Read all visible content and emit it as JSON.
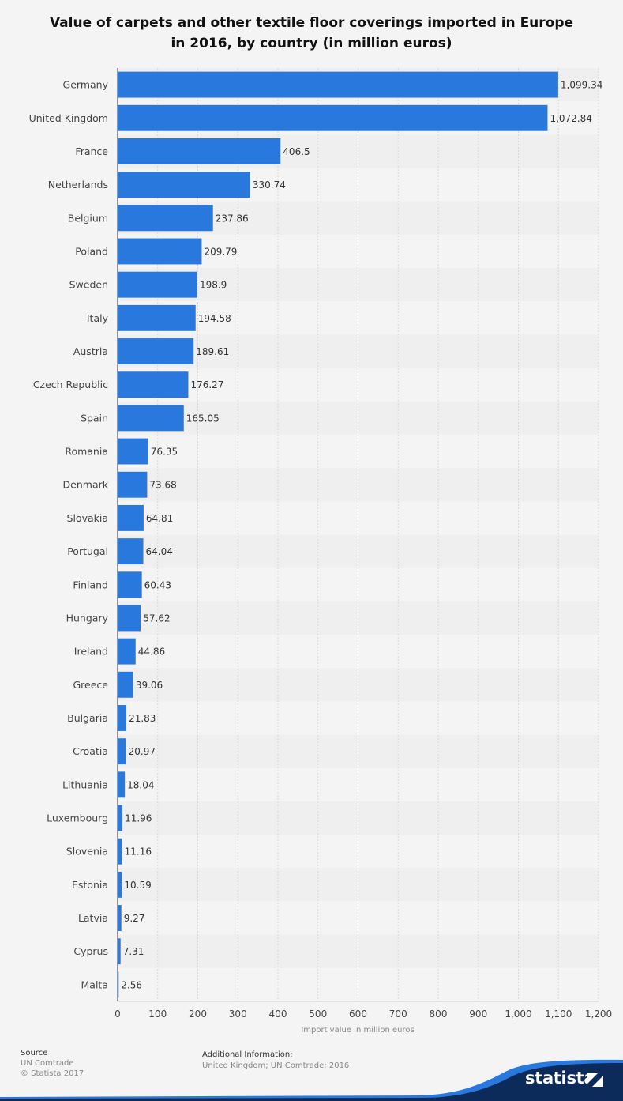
{
  "title_line1": "Value of carpets and other textile floor coverings imported in Europe",
  "title_line2": "in 2016, by country (in million euros)",
  "chart_data": {
    "type": "bar",
    "orientation": "horizontal",
    "categories": [
      "Germany",
      "United Kingdom",
      "France",
      "Netherlands",
      "Belgium",
      "Poland",
      "Sweden",
      "Italy",
      "Austria",
      "Czech Republic",
      "Spain",
      "Romania",
      "Denmark",
      "Slovakia",
      "Portugal",
      "Finland",
      "Hungary",
      "Ireland",
      "Greece",
      "Bulgaria",
      "Croatia",
      "Lithuania",
      "Luxembourg",
      "Slovenia",
      "Estonia",
      "Latvia",
      "Cyprus",
      "Malta"
    ],
    "values": [
      1099.34,
      1072.84,
      406.5,
      330.74,
      237.86,
      209.79,
      198.9,
      194.58,
      189.61,
      176.27,
      165.05,
      76.35,
      73.68,
      64.81,
      64.04,
      60.43,
      57.62,
      44.86,
      39.06,
      21.83,
      20.97,
      18.04,
      11.96,
      11.16,
      10.59,
      9.27,
      7.31,
      2.56
    ],
    "value_labels": [
      "1,099.34",
      "1,072.84",
      "406.5",
      "330.74",
      "237.86",
      "209.79",
      "198.9",
      "194.58",
      "189.61",
      "176.27",
      "165.05",
      "76.35",
      "73.68",
      "64.81",
      "64.04",
      "60.43",
      "57.62",
      "44.86",
      "39.06",
      "21.83",
      "20.97",
      "18.04",
      "11.96",
      "11.16",
      "10.59",
      "9.27",
      "7.31",
      "2.56"
    ],
    "xlim": [
      0,
      1200
    ],
    "ticks": [
      0,
      100,
      200,
      300,
      400,
      500,
      600,
      700,
      800,
      900,
      1000,
      1100,
      1200
    ],
    "tick_labels": [
      "0",
      "100",
      "200",
      "300",
      "400",
      "500",
      "600",
      "700",
      "800",
      "900",
      "1,000",
      "1,100",
      "1,200"
    ],
    "xlabel": "Import value in million euros",
    "ylabel": "",
    "grid": true,
    "bar_color": "#2878de"
  },
  "footer": {
    "source_heading": "Source",
    "source_line1": "UN Comtrade",
    "source_line2": "© Statista 2017",
    "additional_heading": "Additional Information:",
    "additional_text": "United Kingdom; UN Comtrade; 2016"
  },
  "brand": {
    "name": "statista",
    "color": "#0d2b5a"
  }
}
